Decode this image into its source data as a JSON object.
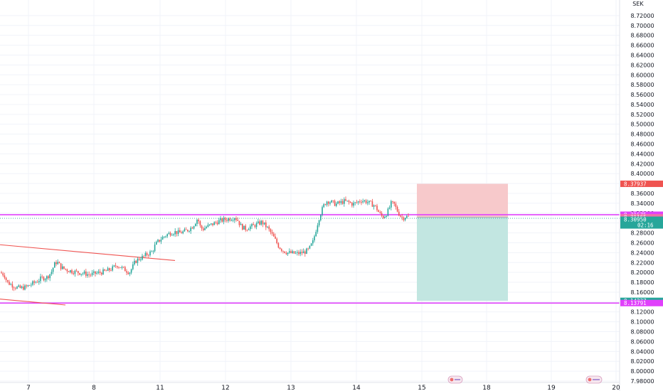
{
  "currency": "SEK",
  "colors": {
    "up": "#26a69a",
    "down": "#ef5350",
    "level": "#e040fb",
    "trend": "#ef5350",
    "stop_zone": "#f7c9cb",
    "target_zone": "#c2e6e1",
    "grid": "#f0f3fa"
  },
  "badges": {
    "stop": "8.37937",
    "level_high": "8.31675",
    "last_close": "8.31165",
    "current": "8.30950",
    "countdown": "02:16",
    "target": "8.14237",
    "level_low": "8.13791"
  },
  "icons": [
    "calendar-event-icon-1",
    "calendar-event-icon-2"
  ],
  "chart_data": {
    "type": "candlestick",
    "title": "",
    "xlabel": "",
    "ylabel": "",
    "y_unit": "SEK",
    "ylim": [
      7.98,
      8.74
    ],
    "y_ticks": [
      "8.72000",
      "8.70000",
      "8.68000",
      "8.66000",
      "8.64000",
      "8.62000",
      "8.60000",
      "8.58000",
      "8.56000",
      "8.54000",
      "8.52000",
      "8.50000",
      "8.48000",
      "8.46000",
      "8.44000",
      "8.42000",
      "8.40000",
      "8.38000",
      "8.36000",
      "8.34000",
      "8.32000",
      "8.30000",
      "8.28000",
      "8.26000",
      "8.24000",
      "8.22000",
      "8.20000",
      "8.18000",
      "8.16000",
      "8.14000",
      "8.12000",
      "8.10000",
      "8.08000",
      "8.06000",
      "8.04000",
      "8.02000",
      "8.00000",
      "7.98000"
    ],
    "x_ticks": [
      "7",
      "8",
      "11",
      "12",
      "13",
      "14",
      "15",
      "18",
      "19",
      "20"
    ],
    "grid": true,
    "price_path": [
      [
        0,
        8.2
      ],
      [
        6,
        8.195
      ],
      [
        10,
        8.18
      ],
      [
        16,
        8.175
      ],
      [
        22,
        8.17
      ],
      [
        28,
        8.168
      ],
      [
        36,
        8.17
      ],
      [
        44,
        8.176
      ],
      [
        52,
        8.182
      ],
      [
        58,
        8.188
      ],
      [
        66,
        8.19
      ],
      [
        72,
        8.2
      ],
      [
        76,
        8.215
      ],
      [
        80,
        8.222
      ],
      [
        86,
        8.21
      ],
      [
        94,
        8.205
      ],
      [
        102,
        8.202
      ],
      [
        110,
        8.2
      ],
      [
        118,
        8.198
      ],
      [
        126,
        8.195
      ],
      [
        134,
        8.198
      ],
      [
        142,
        8.2
      ],
      [
        150,
        8.203
      ],
      [
        158,
        8.208
      ],
      [
        164,
        8.215
      ],
      [
        170,
        8.21
      ],
      [
        176,
        8.205
      ],
      [
        182,
        8.2
      ],
      [
        186,
        8.21
      ],
      [
        190,
        8.222
      ],
      [
        196,
        8.228
      ],
      [
        202,
        8.232
      ],
      [
        208,
        8.238
      ],
      [
        214,
        8.242
      ],
      [
        218,
        8.255
      ],
      [
        222,
        8.262
      ],
      [
        228,
        8.27
      ],
      [
        234,
        8.276
      ],
      [
        240,
        8.28
      ],
      [
        246,
        8.282
      ],
      [
        252,
        8.28
      ],
      [
        258,
        8.282
      ],
      [
        264,
        8.286
      ],
      [
        270,
        8.292
      ],
      [
        274,
        8.3
      ],
      [
        278,
        8.31
      ],
      [
        282,
        8.29
      ],
      [
        286,
        8.288
      ],
      [
        290,
        8.292
      ],
      [
        296,
        8.296
      ],
      [
        302,
        8.3
      ],
      [
        308,
        8.304
      ],
      [
        314,
        8.306
      ],
      [
        320,
        8.308
      ],
      [
        326,
        8.31
      ],
      [
        330,
        8.312
      ],
      [
        334,
        8.306
      ],
      [
        338,
        8.295
      ],
      [
        342,
        8.29
      ],
      [
        346,
        8.288
      ],
      [
        350,
        8.292
      ],
      [
        356,
        8.294
      ],
      [
        362,
        8.298
      ],
      [
        368,
        8.302
      ],
      [
        372,
        8.296
      ],
      [
        376,
        8.29
      ],
      [
        380,
        8.282
      ],
      [
        386,
        8.268
      ],
      [
        392,
        8.252
      ],
      [
        398,
        8.244
      ],
      [
        404,
        8.24
      ],
      [
        410,
        8.239
      ],
      [
        416,
        8.238
      ],
      [
        422,
        8.239
      ],
      [
        428,
        8.241
      ],
      [
        434,
        8.246
      ],
      [
        440,
        8.262
      ],
      [
        444,
        8.285
      ],
      [
        448,
        8.308
      ],
      [
        452,
        8.325
      ],
      [
        456,
        8.338
      ],
      [
        460,
        8.345
      ],
      [
        466,
        8.342
      ],
      [
        472,
        8.338
      ],
      [
        478,
        8.341
      ],
      [
        484,
        8.344
      ],
      [
        490,
        8.342
      ],
      [
        496,
        8.338
      ],
      [
        502,
        8.342
      ],
      [
        508,
        8.346
      ],
      [
        514,
        8.344
      ],
      [
        520,
        8.34
      ],
      [
        526,
        8.336
      ],
      [
        530,
        8.328
      ],
      [
        534,
        8.318
      ],
      [
        538,
        8.312
      ],
      [
        542,
        8.316
      ],
      [
        546,
        8.326
      ],
      [
        550,
        8.34
      ],
      [
        554,
        8.338
      ],
      [
        558,
        8.326
      ],
      [
        562,
        8.316
      ],
      [
        566,
        8.31
      ],
      [
        570,
        8.313
      ],
      [
        574,
        8.312
      ]
    ],
    "horizontal_levels": [
      8.31675,
      8.13791
    ],
    "trendlines": [
      {
        "start": [
          0,
          8.256
        ],
        "end": [
          246,
          8.224
        ]
      },
      {
        "start": [
          0,
          8.146
        ],
        "end": [
          92,
          8.134
        ]
      }
    ],
    "position": {
      "x_start": 586,
      "x_end": 714,
      "entry": 8.31165,
      "stop": 8.37937,
      "target": 8.14237
    },
    "current_price": 8.3095
  }
}
